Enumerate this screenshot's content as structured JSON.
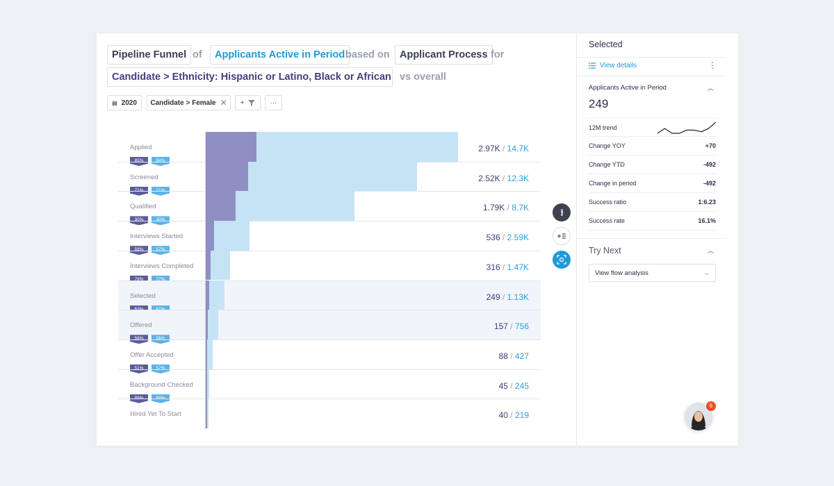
{
  "query": {
    "metric_chip": "Pipeline Funnel",
    "of_word": "of",
    "population_chip": "Applicants Active in Period",
    "based_on_word": "based on",
    "process_chip": "Applicant Process",
    "for_word": "for",
    "segment_chip": "Candidate > Ethnicity: Hispanic or Latino, Black or African A...",
    "comparison_word": "vs overall"
  },
  "filters": {
    "year": "2020",
    "gender": "Candidate > Female",
    "add_filter": "+",
    "more": "···"
  },
  "chart_data": {
    "type": "bar",
    "title": "Pipeline Funnel",
    "series": [
      {
        "name": "Segment",
        "values": [
          2970,
          2520,
          1790,
          536,
          316,
          249,
          157,
          88,
          45,
          40
        ]
      },
      {
        "name": "Overall",
        "values": [
          14700,
          12300,
          8700,
          2590,
          1470,
          1130,
          756,
          427,
          245,
          219
        ]
      }
    ],
    "categories": [
      "Applied",
      "Screened",
      "Qualified",
      "Interviews Started",
      "Interviews Completed",
      "Selected",
      "Offered",
      "Offer Accepted",
      "Background Checked",
      "Hired Yet To Start"
    ],
    "max": 14700,
    "conversion_segment": [
      "85%",
      "71%",
      "30%",
      "59%",
      "79%",
      "63%",
      "56%",
      "51%",
      "89%"
    ],
    "conversion_overall": [
      "84%",
      "71%",
      "30%",
      "57%",
      "77%",
      "67%",
      "56%",
      "57%",
      "89%"
    ],
    "label_segment": [
      "2.97K",
      "2.52K",
      "1.79K",
      "536",
      "316",
      "249",
      "157",
      "88",
      "45",
      "40"
    ],
    "label_overall": [
      "14.7K",
      "12.3K",
      "8.7K",
      "2.59K",
      "1.47K",
      "1.13K",
      "756",
      "427",
      "245",
      "219"
    ],
    "separator": "/",
    "highlighted": [
      "Selected",
      "Offered"
    ],
    "colors": {
      "segment": "#8f8fc4",
      "overall": "#c5e3f4"
    }
  },
  "side_actions": {
    "info_icon": "info-icon",
    "add_list_icon": "add-list-icon",
    "focus_icon": "focus-icon"
  },
  "panel": {
    "title": "Selected",
    "view_details": "View details",
    "metric_name": "Applicants Active in Period",
    "metric_value": "249",
    "trend_label": "12M trend",
    "trend_values": [
      3,
      6,
      3,
      3,
      5,
      5,
      4,
      6,
      10
    ],
    "stats": [
      {
        "label": "Change YOY",
        "value": "+70"
      },
      {
        "label": "Change YTD",
        "value": "-492"
      },
      {
        "label": "Change in period",
        "value": "-492"
      },
      {
        "label": "Success ratio",
        "value": "1:6.23"
      },
      {
        "label": "Success rate",
        "value": "16.1%"
      }
    ],
    "try_next": "Try Next",
    "flow_button": "View flow analysis"
  },
  "assistant": {
    "notification_count": "6"
  }
}
